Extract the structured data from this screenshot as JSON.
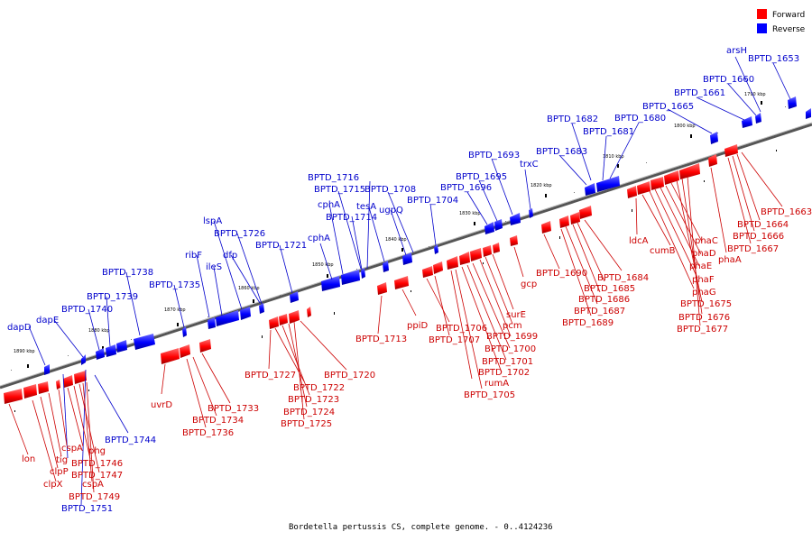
{
  "caption": "Bordetella pertussis CS, complete genome. - 0..4124236",
  "legend": [
    {
      "label": "Forward",
      "color": "#ff0000"
    },
    {
      "label": "Reverse",
      "color": "#0000ff"
    }
  ],
  "colors": {
    "forward": "#ff0000",
    "reverse": "#0000ff",
    "forward_text": "#cc0000",
    "reverse_text": "#0000cc"
  },
  "axis_ticks": [
    "1890 kbp",
    "1880 kbp",
    "1870 kbp",
    "1860 kbp",
    "1850 kbp",
    "1840 kbp",
    "1830 kbp",
    "1820 kbp",
    "1810 kbp",
    "1800 kbp",
    "1790 kbp"
  ],
  "reverse_labels": [
    "dapD",
    "dapE",
    "BPTD_1740",
    "BPTD_1739",
    "BPTD_1738",
    "BPTD_1735",
    "ribF",
    "ileS",
    "lspA",
    "dfp",
    "BPTD_1726",
    "BPTD_1721",
    "cphA",
    "cphA",
    "BPTD_1714",
    "BPTD_1715",
    "BPTD_1716",
    "tesA",
    "ugpQ",
    "BPTD_1708",
    "BPTD_1704",
    "BPTD_1696",
    "BPTD_1695",
    "BPTD_1693",
    "trxC",
    "BPTD_1683",
    "BPTD_1682",
    "BPTD_1681",
    "BPTD_1680",
    "BPTD_1665",
    "BPTD_1661",
    "BPTD_1660",
    "arsH",
    "BPTD_1653",
    "BPTD_1744",
    "BPTD_1751"
  ],
  "forward_labels": [
    "lon",
    "tig",
    "clpP",
    "clpX",
    "cspA",
    "phg",
    "BPTD_1746",
    "BPTD_1747",
    "cspA",
    "BPTD_1749",
    "uvrD",
    "BPTD_1733",
    "BPTD_1734",
    "BPTD_1736",
    "BPTD_1727",
    "BPTD_1722",
    "BPTD_1723",
    "BPTD_1724",
    "BPTD_1725",
    "BPTD_1720",
    "BPTD_1713",
    "ppiD",
    "BPTD_1706",
    "BPTD_1707",
    "surE",
    "pcm",
    "BPTD_1699",
    "BPTD_1700",
    "BPTD_1701",
    "BPTD_1702",
    "rumA",
    "BPTD_1705",
    "gcp",
    "BPTD_1690",
    "BPTD_1684",
    "BPTD_1685",
    "BPTD_1686",
    "BPTD_1687",
    "BPTD_1689",
    "ldcA",
    "cumB",
    "phaC",
    "phaD",
    "phaE",
    "phaF",
    "phaG",
    "phaA",
    "BPTD_1675",
    "BPTD_1676",
    "BPTD_1677",
    "BPTD_1663",
    "BPTD_1664",
    "BPTD_1666",
    "BPTD_1667"
  ]
}
